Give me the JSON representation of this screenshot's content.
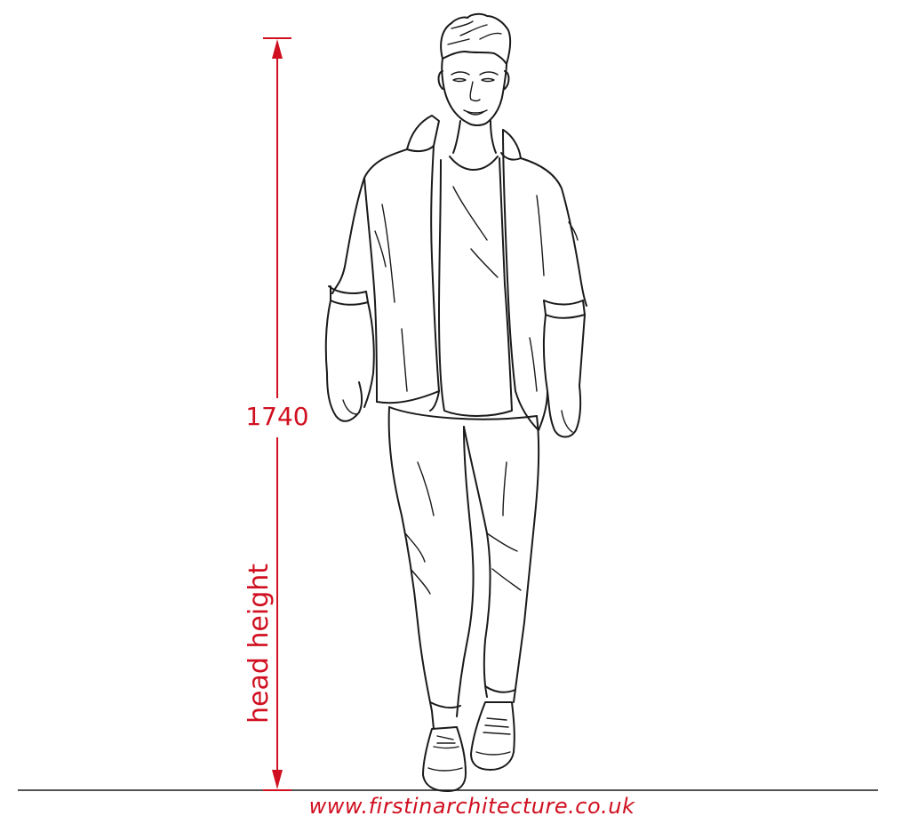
{
  "dimension": {
    "value": "1740",
    "label": "head height"
  },
  "footer": {
    "url": "www.firstinarchitecture.co.uk"
  },
  "colors": {
    "dimension": "#d01020",
    "linework": "#1a1a1a",
    "background": "#ffffff"
  }
}
